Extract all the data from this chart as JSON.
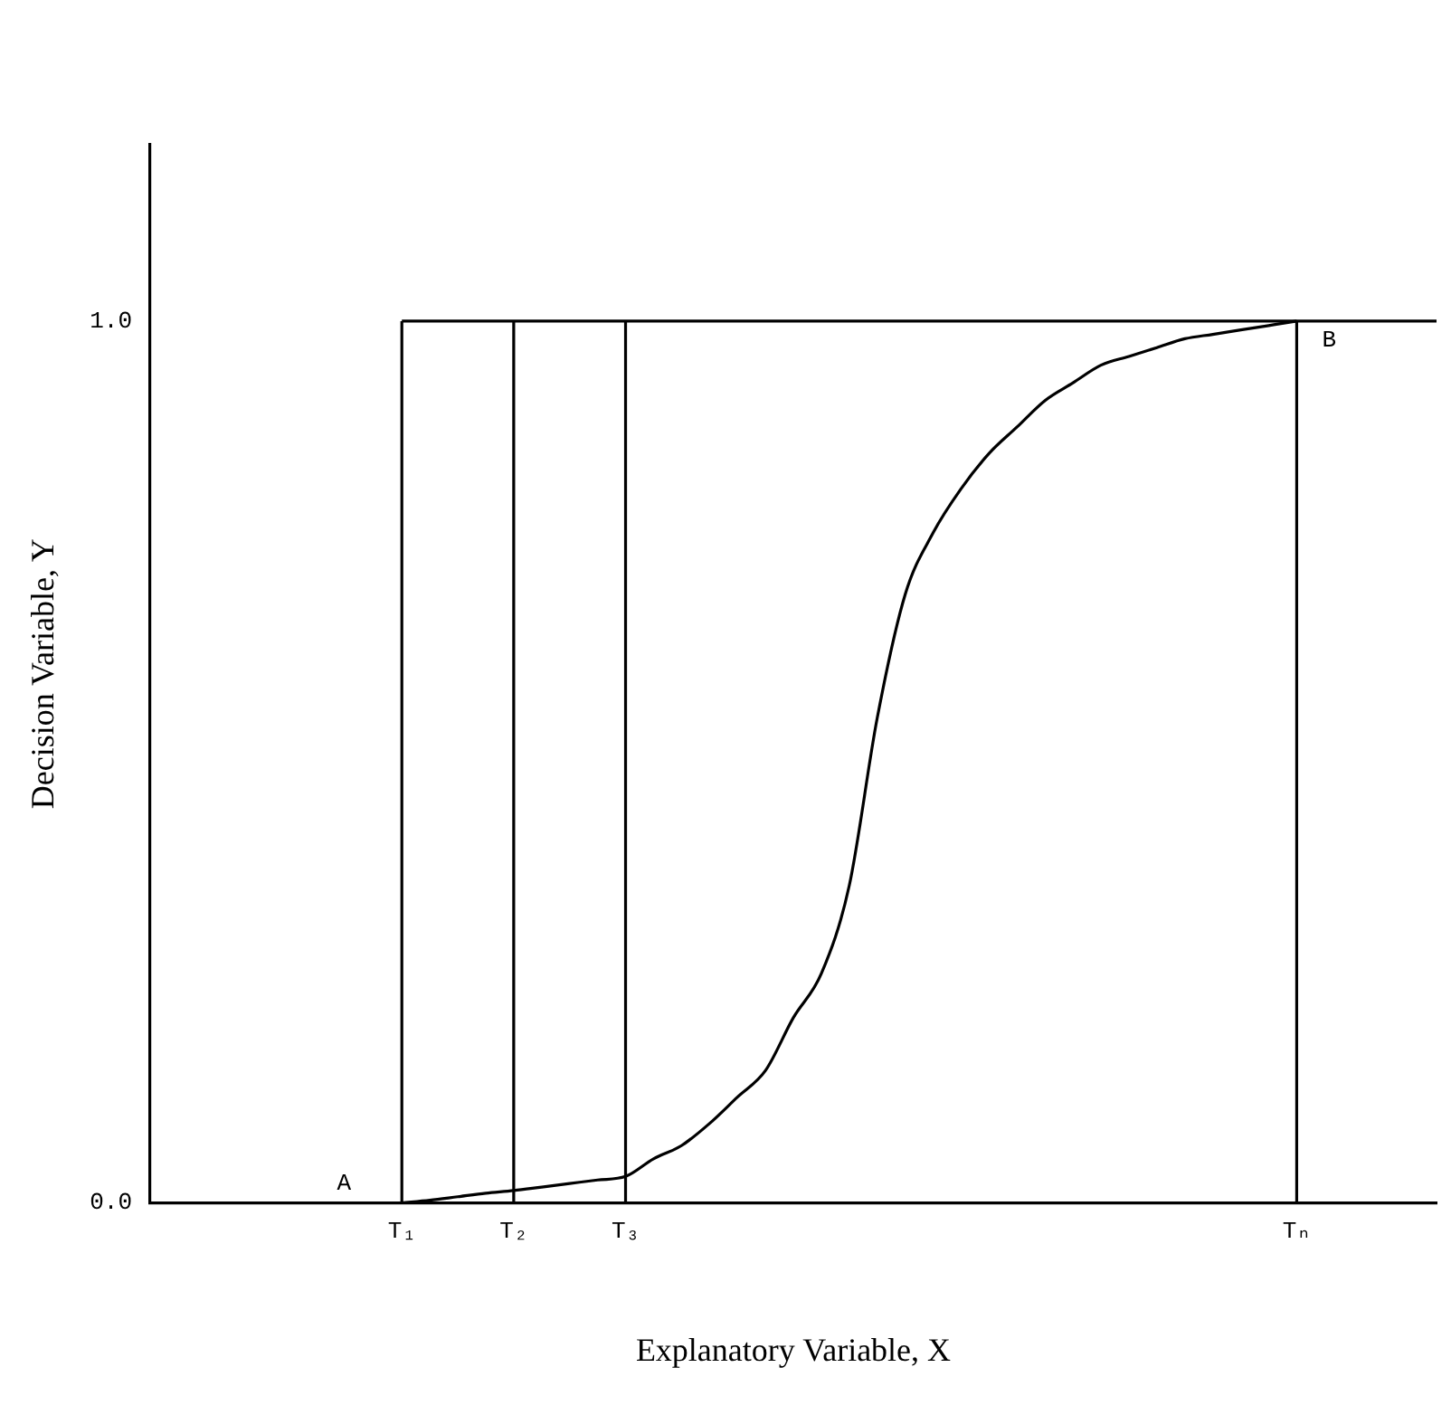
{
  "chart_data": {
    "type": "line",
    "xlabel": "Explanatory Variable, X",
    "ylabel": "Decision Variable, Y",
    "categories": [
      null,
      null,
      null,
      null,
      null,
      null,
      null,
      null,
      null,
      "T₁",
      null,
      null,
      null,
      "T₂",
      null,
      null,
      null,
      "T₃",
      null,
      null,
      null,
      null,
      null,
      null,
      null,
      null,
      null,
      null,
      null,
      null,
      null,
      null,
      null,
      null,
      null,
      null,
      null,
      null,
      null,
      null,
      null,
      "Tₙ",
      null,
      null,
      null,
      null,
      null
    ],
    "ylim": [
      0,
      1.2
    ],
    "yticks": [
      {
        "value": 0,
        "label": "0.0"
      },
      {
        "value": 1,
        "label": "1.0"
      }
    ],
    "grid": false,
    "legend": false,
    "marker": "none",
    "line_style": "solid",
    "series": [
      {
        "color": "#000000",
        "values": [
          null,
          null,
          null,
          null,
          null,
          null,
          null,
          null,
          null,
          0,
          0.003,
          0.007,
          0.011,
          0.014,
          0.018,
          0.022,
          0.026,
          0.03,
          0.05,
          0.065,
          0.09,
          0.12,
          0.15,
          0.21,
          0.26,
          0.36,
          0.55,
          0.69,
          0.76,
          0.81,
          0.85,
          0.88,
          0.91,
          0.93,
          0.95,
          0.96,
          0.97,
          0.98,
          0.985,
          0.99,
          0.995,
          1,
          null,
          null,
          null,
          null,
          null
        ]
      }
    ],
    "ref_lines": [
      {
        "axis": "x",
        "value": "T₁",
        "color": "#000000"
      },
      {
        "axis": "x",
        "value": "T₂",
        "color": "#000000"
      },
      {
        "axis": "x",
        "value": "T₃",
        "color": "#000000"
      },
      {
        "axis": "x",
        "value": "Tₙ",
        "color": "#000000"
      },
      {
        "axis": "y",
        "value": 1,
        "color": "#000000"
      }
    ],
    "annotations": [
      "A",
      "B"
    ]
  }
}
